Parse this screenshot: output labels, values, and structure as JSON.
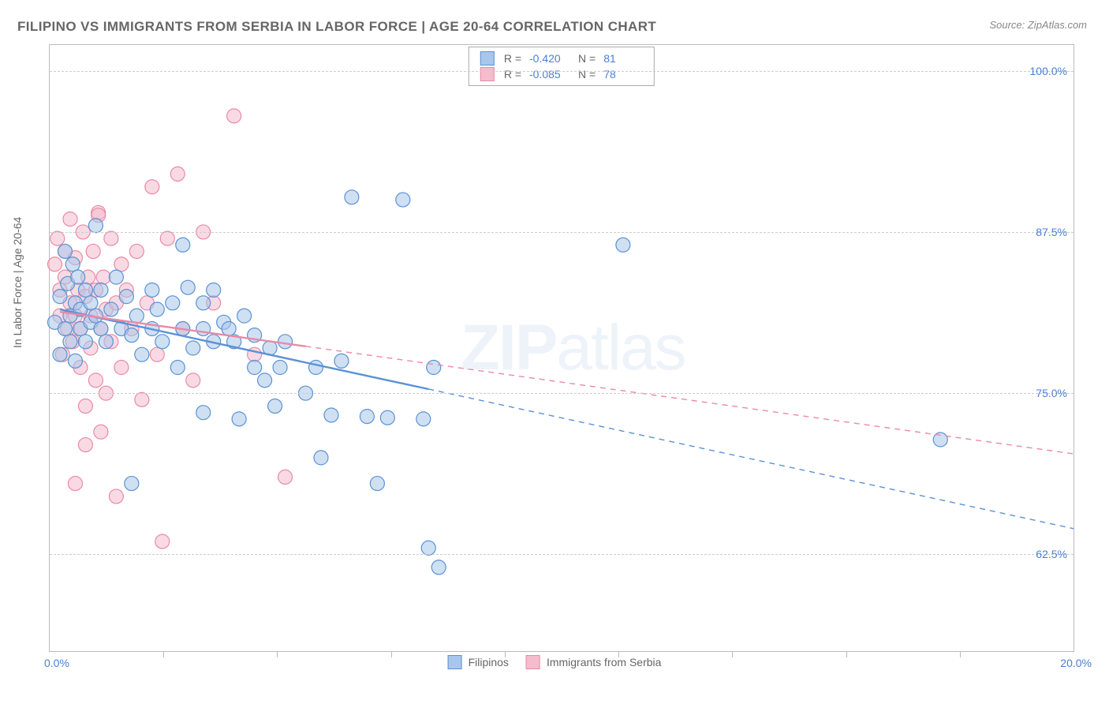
{
  "title": "FILIPINO VS IMMIGRANTS FROM SERBIA IN LABOR FORCE | AGE 20-64 CORRELATION CHART",
  "source_label": "Source: ZipAtlas.com",
  "ylabel": "In Labor Force | Age 20-64",
  "watermark_a": "ZIP",
  "watermark_b": "atlas",
  "chart": {
    "type": "scatter",
    "xlim": [
      0.0,
      20.0
    ],
    "ylim": [
      55.0,
      102.0
    ],
    "xlabel_min": "0.0%",
    "xlabel_max": "20.0%",
    "ytick_values": [
      62.5,
      75.0,
      87.5,
      100.0
    ],
    "ytick_labels": [
      "62.5%",
      "75.0%",
      "87.5%",
      "100.0%"
    ],
    "xtick_count": 9,
    "grid_color": "#cccccc",
    "border_color": "#bbbbbb",
    "background_color": "#ffffff",
    "marker_radius": 9,
    "marker_opacity": 0.55,
    "line_width_solid": 2.4,
    "line_width_dash": 1.4
  },
  "series": [
    {
      "name": "Filipinos",
      "color_fill": "#a8c7ea",
      "color_stroke": "#5b92d4",
      "r": "-0.420",
      "n": "81",
      "trend": {
        "x1": 0.2,
        "y1": 81.5,
        "x2": 20.0,
        "y2": 64.5,
        "solid_until_x": 7.4
      },
      "points": [
        [
          0.1,
          80.5
        ],
        [
          0.2,
          82.5
        ],
        [
          0.2,
          78.0
        ],
        [
          0.3,
          86.0
        ],
        [
          0.3,
          80.0
        ],
        [
          0.35,
          83.5
        ],
        [
          0.4,
          79.0
        ],
        [
          0.4,
          81.0
        ],
        [
          0.45,
          85.0
        ],
        [
          0.5,
          82.0
        ],
        [
          0.5,
          77.5
        ],
        [
          0.55,
          84.0
        ],
        [
          0.6,
          80.0
        ],
        [
          0.6,
          81.5
        ],
        [
          0.7,
          83.0
        ],
        [
          0.7,
          79.0
        ],
        [
          0.8,
          82.0
        ],
        [
          0.8,
          80.5
        ],
        [
          0.9,
          88.0
        ],
        [
          0.9,
          81.0
        ],
        [
          1.0,
          80.0
        ],
        [
          1.0,
          83.0
        ],
        [
          1.1,
          79.0
        ],
        [
          1.2,
          81.5
        ],
        [
          1.3,
          84.0
        ],
        [
          1.4,
          80.0
        ],
        [
          1.5,
          82.5
        ],
        [
          1.6,
          79.5
        ],
        [
          1.7,
          81.0
        ],
        [
          1.8,
          78.0
        ],
        [
          1.6,
          68.0
        ],
        [
          2.0,
          83.0
        ],
        [
          2.0,
          80.0
        ],
        [
          2.1,
          81.5
        ],
        [
          2.2,
          79.0
        ],
        [
          2.4,
          82.0
        ],
        [
          2.5,
          77.0
        ],
        [
          2.6,
          80.0
        ],
        [
          2.6,
          86.5
        ],
        [
          2.7,
          83.2
        ],
        [
          2.8,
          78.5
        ],
        [
          3.0,
          80.0
        ],
        [
          3.0,
          82.0
        ],
        [
          3.0,
          73.5
        ],
        [
          3.2,
          79.0
        ],
        [
          3.2,
          83.0
        ],
        [
          3.4,
          80.5
        ],
        [
          3.5,
          80.0
        ],
        [
          3.6,
          79.0
        ],
        [
          3.7,
          73.0
        ],
        [
          3.8,
          81.0
        ],
        [
          4.0,
          79.5
        ],
        [
          4.0,
          77.0
        ],
        [
          4.2,
          76.0
        ],
        [
          4.3,
          78.5
        ],
        [
          4.4,
          74.0
        ],
        [
          4.5,
          77.0
        ],
        [
          4.6,
          79.0
        ],
        [
          5.0,
          75.0
        ],
        [
          5.2,
          77.0
        ],
        [
          5.3,
          70.0
        ],
        [
          5.5,
          73.3
        ],
        [
          5.7,
          77.5
        ],
        [
          5.9,
          90.2
        ],
        [
          6.2,
          73.2
        ],
        [
          6.4,
          68.0
        ],
        [
          6.6,
          73.1
        ],
        [
          6.9,
          90.0
        ],
        [
          7.3,
          73.0
        ],
        [
          7.4,
          63.0
        ],
        [
          7.5,
          77.0
        ],
        [
          7.6,
          61.5
        ],
        [
          11.2,
          86.5
        ],
        [
          17.4,
          71.4
        ]
      ]
    },
    {
      "name": "Immigrants from Serbia",
      "color_fill": "#f4bccd",
      "color_stroke": "#e98aa6",
      "r": "-0.085",
      "n": "78",
      "trend": {
        "x1": 0.2,
        "y1": 81.3,
        "x2": 20.0,
        "y2": 70.3,
        "solid_until_x": 5.0
      },
      "points": [
        [
          0.1,
          85.0
        ],
        [
          0.15,
          87.0
        ],
        [
          0.2,
          83.0
        ],
        [
          0.2,
          81.0
        ],
        [
          0.25,
          78.0
        ],
        [
          0.3,
          86.0
        ],
        [
          0.3,
          84.0
        ],
        [
          0.35,
          80.0
        ],
        [
          0.4,
          82.0
        ],
        [
          0.4,
          88.5
        ],
        [
          0.45,
          79.0
        ],
        [
          0.5,
          85.5
        ],
        [
          0.5,
          81.0
        ],
        [
          0.55,
          83.0
        ],
        [
          0.6,
          80.0
        ],
        [
          0.6,
          77.0
        ],
        [
          0.65,
          87.5
        ],
        [
          0.7,
          82.5
        ],
        [
          0.7,
          74.0
        ],
        [
          0.75,
          84.0
        ],
        [
          0.8,
          81.0
        ],
        [
          0.8,
          78.5
        ],
        [
          0.85,
          86.0
        ],
        [
          0.9,
          83.0
        ],
        [
          0.9,
          76.0
        ],
        [
          0.95,
          89.0
        ],
        [
          0.95,
          88.8
        ],
        [
          1.0,
          80.0
        ],
        [
          1.0,
          72.0
        ],
        [
          1.05,
          84.0
        ],
        [
          1.1,
          81.5
        ],
        [
          1.1,
          75.0
        ],
        [
          1.2,
          87.0
        ],
        [
          1.2,
          79.0
        ],
        [
          1.3,
          82.0
        ],
        [
          1.3,
          67.0
        ],
        [
          1.4,
          85.0
        ],
        [
          1.4,
          77.0
        ],
        [
          1.5,
          83.0
        ],
        [
          1.6,
          80.0
        ],
        [
          1.7,
          86.0
        ],
        [
          1.8,
          74.5
        ],
        [
          1.9,
          82.0
        ],
        [
          2.0,
          91.0
        ],
        [
          2.1,
          78.0
        ],
        [
          2.2,
          63.5
        ],
        [
          2.3,
          87.0
        ],
        [
          2.5,
          92.0
        ],
        [
          2.6,
          80.0
        ],
        [
          2.8,
          76.0
        ],
        [
          3.0,
          87.5
        ],
        [
          3.2,
          82.0
        ],
        [
          3.6,
          96.5
        ],
        [
          4.0,
          78.0
        ],
        [
          4.6,
          68.5
        ],
        [
          0.7,
          71.0
        ],
        [
          0.5,
          68.0
        ]
      ]
    }
  ],
  "legend_bottom": {
    "series1_label": "Filipinos",
    "series2_label": "Immigrants from Serbia"
  },
  "legend_top": {
    "r_label": "R =",
    "n_label": "N ="
  }
}
